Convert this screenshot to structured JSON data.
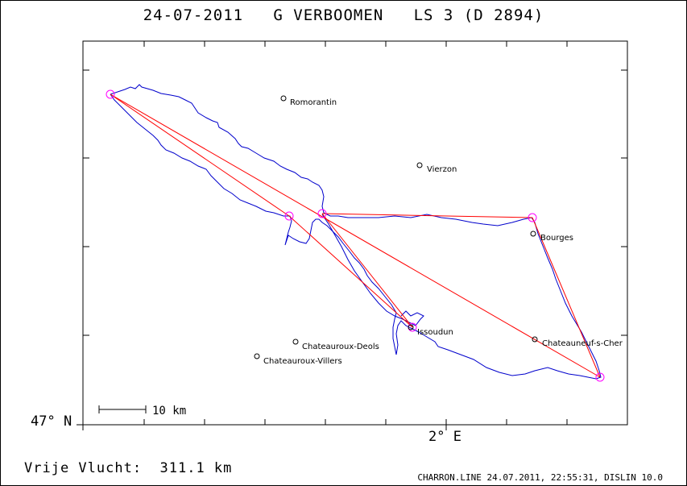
{
  "header": {
    "title": "24-07-2011   G VERBOOMEN   LS 3 (D 2894)"
  },
  "axes": {
    "lat_label": "47° N",
    "lon_label": "2° E"
  },
  "scale_bar": {
    "label": "10 km"
  },
  "cities": [
    {
      "name": "Romorantin"
    },
    {
      "name": "Vierzon"
    },
    {
      "name": "Bourges"
    },
    {
      "name": "Issoudun"
    },
    {
      "name": "Chateauroux-Deols"
    },
    {
      "name": "Chateauroux-Villers"
    },
    {
      "name": "Chateauneuf-s-Cher"
    }
  ],
  "turnpoints": {
    "count": 6
  },
  "summary": {
    "distance_label": "Vrije Vlucht:  311.1 km"
  },
  "footer": {
    "text": "CHARRON.LINE 24.07.2011, 22:55:31, DISLIN 10.0"
  },
  "colors": {
    "track": "#0000cc",
    "task_lines": "#ff0000",
    "turnpoint_circles": "#ff00ff",
    "frame": "#000000"
  }
}
